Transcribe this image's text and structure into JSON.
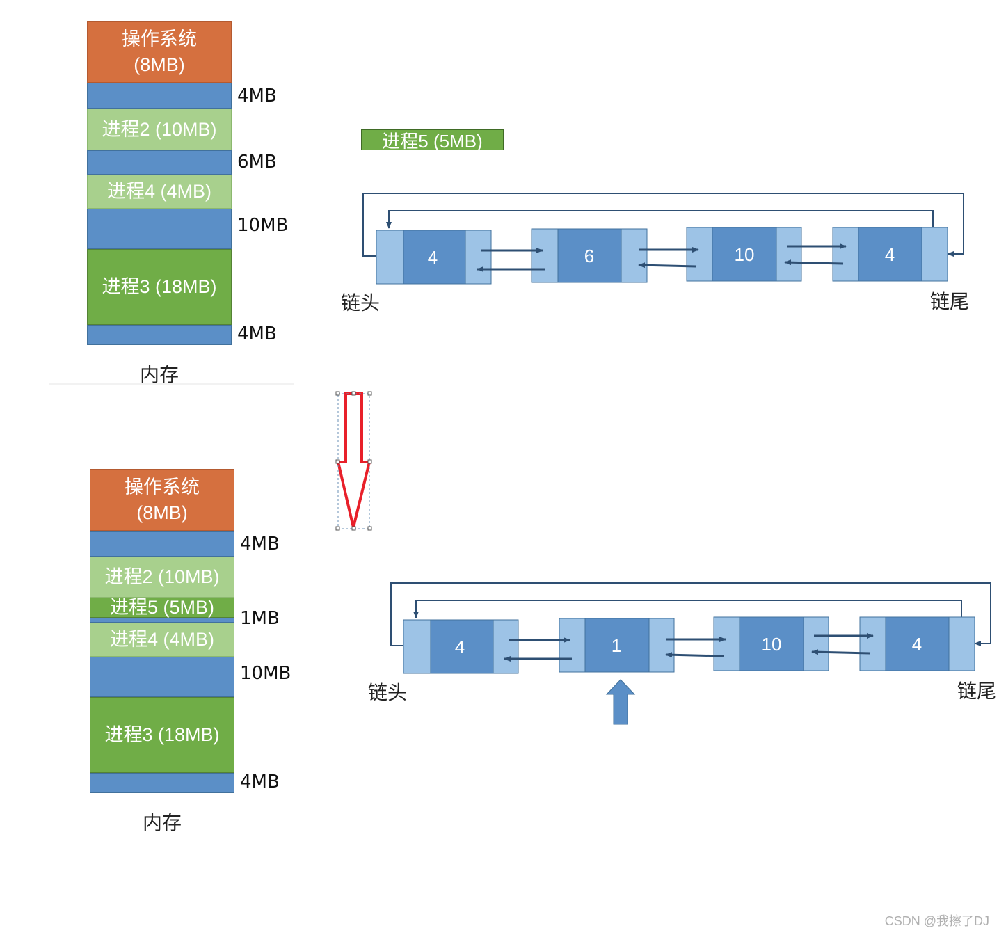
{
  "diagrams": [
    {
      "memory": {
        "caption": "内存",
        "blocks": [
          {
            "label": "操作系统\n(8MB)",
            "kind": "os"
          },
          {
            "label": "",
            "kind": "free"
          },
          {
            "label": "进程2 (10MB)",
            "kind": "process-light"
          },
          {
            "label": "",
            "kind": "free"
          },
          {
            "label": "进程4 (4MB)",
            "kind": "process-light"
          },
          {
            "label": "",
            "kind": "free"
          },
          {
            "label": "进程3 (18MB)",
            "kind": "process-dark"
          },
          {
            "label": "",
            "kind": "free"
          }
        ],
        "side_labels": [
          "4MB",
          "6MB",
          "10MB",
          "4MB"
        ]
      },
      "new_process": "进程5 (5MB)",
      "list": {
        "nodes": [
          "4",
          "6",
          "10",
          "4"
        ],
        "head_label": "链头",
        "tail_label": "链尾"
      }
    },
    {
      "memory": {
        "caption": "内存",
        "blocks": [
          {
            "label": "操作系统\n(8MB)",
            "kind": "os"
          },
          {
            "label": "",
            "kind": "free"
          },
          {
            "label": "进程2 (10MB)",
            "kind": "process-light"
          },
          {
            "label": "进程5 (5MB)",
            "kind": "process-dark"
          },
          {
            "label": "",
            "kind": "free"
          },
          {
            "label": "进程4 (4MB)",
            "kind": "process-light"
          },
          {
            "label": "",
            "kind": "free"
          },
          {
            "label": "进程3 (18MB)",
            "kind": "process-dark"
          },
          {
            "label": "",
            "kind": "free"
          }
        ],
        "side_labels": [
          "4MB",
          "1MB",
          "10MB",
          "4MB"
        ]
      },
      "list": {
        "nodes": [
          "4",
          "1",
          "10",
          "4"
        ],
        "head_label": "链头",
        "tail_label": "链尾",
        "highlighted_node": 1
      }
    }
  ],
  "watermark": "CSDN @我擦了DJ",
  "colors": {
    "os": "#d5703f",
    "free": "#5b8fc7",
    "process_light": "#a8d08d",
    "process_dark": "#70ad47",
    "node_dark": "#5b8fc7",
    "node_light": "#9dc3e6",
    "link": "#2e4f73",
    "down_arrow": "#e8202a",
    "up_arrow": "#5b8fc7"
  }
}
